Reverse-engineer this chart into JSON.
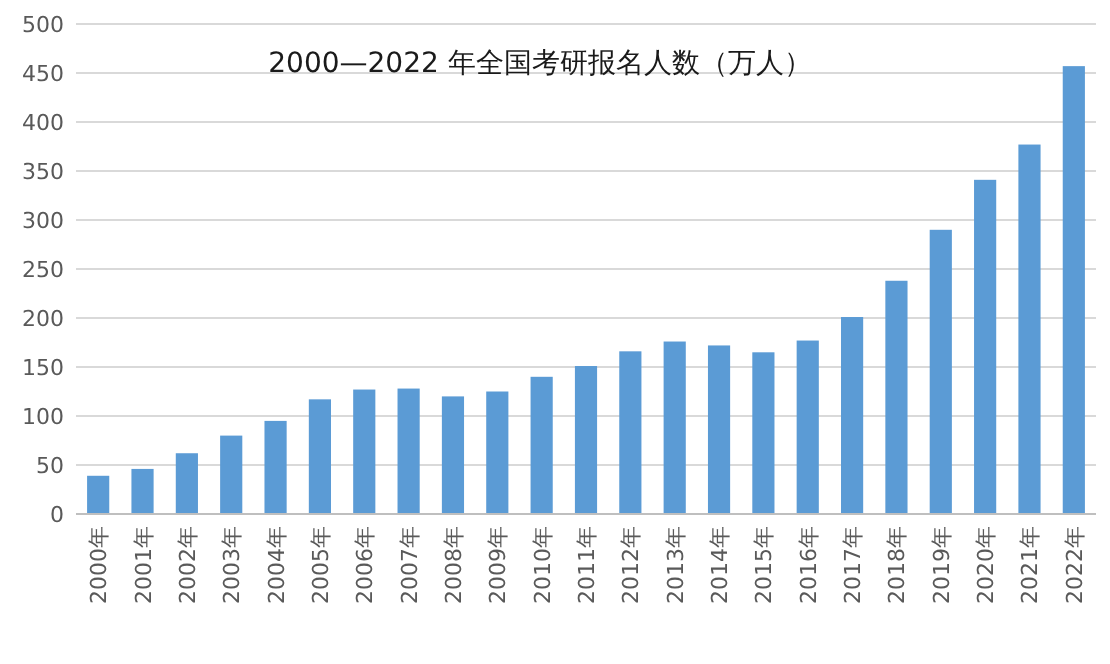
{
  "chart_data": {
    "type": "bar",
    "title": "2000—2022 年全国考研报名人数（万人）",
    "categories": [
      "2000年",
      "2001年",
      "2002年",
      "2003年",
      "2004年",
      "2005年",
      "2006年",
      "2007年",
      "2008年",
      "2009年",
      "2010年",
      "2011年",
      "2012年",
      "2013年",
      "2014年",
      "2015年",
      "2016年",
      "2017年",
      "2018年",
      "2019年",
      "2020年",
      "2021年",
      "2022年"
    ],
    "values": [
      39,
      46,
      62,
      80,
      95,
      117,
      127,
      128,
      120,
      125,
      140,
      151,
      166,
      176,
      172,
      165,
      177,
      201,
      238,
      290,
      341,
      377,
      457
    ],
    "color": "#5b9bd5",
    "ylim": [
      0,
      500
    ],
    "yticks": [
      0,
      50,
      100,
      150,
      200,
      250,
      300,
      350,
      400,
      450,
      500
    ],
    "grid": "y"
  }
}
